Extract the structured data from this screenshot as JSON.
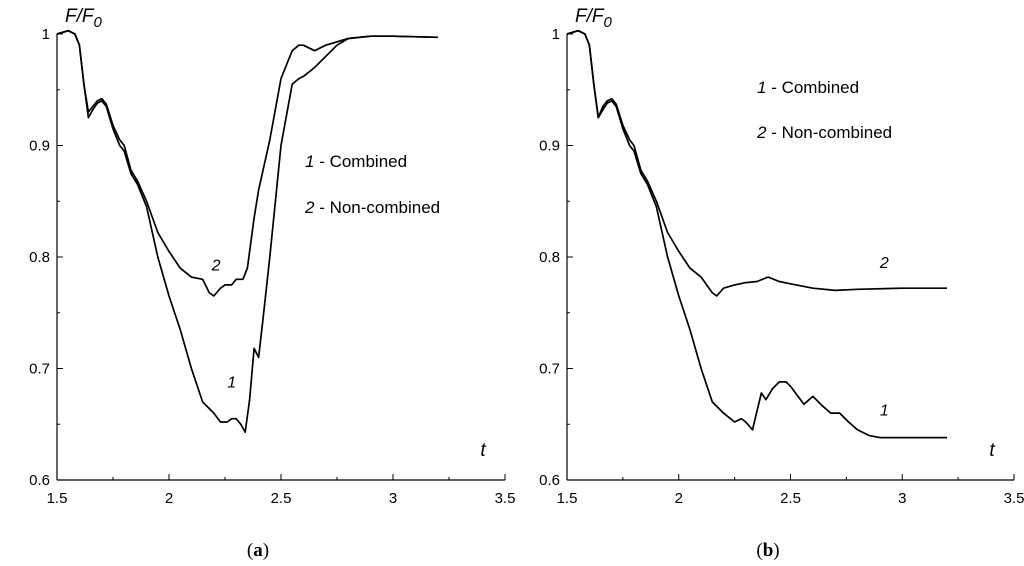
{
  "chart_data": [
    {
      "type": "line",
      "panel_label": "a",
      "ylabel": "F/F0",
      "ylabel_base": "F/F",
      "ylabel_sub": "0",
      "xlabel": "t",
      "xlim": [
        1.5,
        3.5
      ],
      "ylim": [
        0.6,
        1.0
      ],
      "x_ticks": [
        "1.5",
        "2",
        "2.5",
        "3",
        "3.5"
      ],
      "y_ticks": [
        "0.6",
        "0.7",
        "0.8",
        "0.9",
        "1"
      ],
      "grid": false,
      "legend": [
        {
          "num": "1",
          "text": "- Combined"
        },
        {
          "num": "2",
          "text": "- Non-combined"
        }
      ],
      "legend_placement": "right-middle",
      "series": [
        {
          "curve_label": "1",
          "x": [
            1.5,
            1.55,
            1.58,
            1.6,
            1.62,
            1.64,
            1.66,
            1.68,
            1.7,
            1.72,
            1.75,
            1.78,
            1.8,
            1.83,
            1.86,
            1.9,
            1.95,
            2.0,
            2.05,
            2.1,
            2.15,
            2.2,
            2.23,
            2.26,
            2.28,
            2.3,
            2.32,
            2.34,
            2.36,
            2.38,
            2.4,
            2.42,
            2.45,
            2.5,
            2.55,
            2.58,
            2.6,
            2.65,
            2.7,
            2.75,
            2.8,
            2.9,
            3.0,
            3.2
          ],
          "y": [
            1.0,
            1.003,
            1.0,
            0.99,
            0.955,
            0.925,
            0.932,
            0.938,
            0.94,
            0.935,
            0.915,
            0.9,
            0.895,
            0.875,
            0.865,
            0.845,
            0.8,
            0.765,
            0.735,
            0.7,
            0.67,
            0.66,
            0.652,
            0.652,
            0.655,
            0.655,
            0.65,
            0.643,
            0.672,
            0.718,
            0.71,
            0.745,
            0.8,
            0.9,
            0.955,
            0.96,
            0.962,
            0.97,
            0.98,
            0.99,
            0.996,
            0.998,
            0.998,
            0.997
          ]
        },
        {
          "curve_label": "2",
          "x": [
            1.5,
            1.55,
            1.58,
            1.6,
            1.62,
            1.64,
            1.66,
            1.68,
            1.7,
            1.72,
            1.75,
            1.78,
            1.8,
            1.83,
            1.86,
            1.9,
            1.95,
            2.0,
            2.05,
            2.1,
            2.15,
            2.18,
            2.2,
            2.23,
            2.25,
            2.28,
            2.3,
            2.33,
            2.35,
            2.38,
            2.4,
            2.45,
            2.5,
            2.55,
            2.58,
            2.6,
            2.65,
            2.7,
            2.8,
            2.9,
            3.0,
            3.2
          ],
          "y": [
            1.0,
            1.003,
            1.0,
            0.99,
            0.955,
            0.93,
            0.935,
            0.94,
            0.942,
            0.937,
            0.918,
            0.905,
            0.9,
            0.878,
            0.868,
            0.85,
            0.822,
            0.805,
            0.79,
            0.782,
            0.78,
            0.768,
            0.765,
            0.772,
            0.775,
            0.775,
            0.78,
            0.78,
            0.79,
            0.835,
            0.86,
            0.905,
            0.96,
            0.985,
            0.99,
            0.99,
            0.985,
            0.99,
            0.996,
            0.998,
            0.998,
            0.997
          ]
        }
      ],
      "curve_label_positions": [
        {
          "label": "1",
          "x": 2.28,
          "y": 0.683
        },
        {
          "label": "2",
          "x": 2.21,
          "y": 0.788
        }
      ]
    },
    {
      "type": "line",
      "panel_label": "b",
      "ylabel": "F/F0",
      "ylabel_base": "F/F",
      "ylabel_sub": "0",
      "xlabel": "t",
      "xlim": [
        1.5,
        3.5
      ],
      "ylim": [
        0.6,
        1.0
      ],
      "x_ticks": [
        "1.5",
        "2",
        "2.5",
        "3",
        "3.5"
      ],
      "y_ticks": [
        "0.6",
        "0.7",
        "0.8",
        "0.9",
        "1"
      ],
      "grid": false,
      "legend": [
        {
          "num": "1",
          "text": "- Combined"
        },
        {
          "num": "2",
          "text": "- Non-combined"
        }
      ],
      "legend_placement": "top-right",
      "series": [
        {
          "curve_label": "1",
          "x": [
            1.5,
            1.55,
            1.58,
            1.6,
            1.62,
            1.64,
            1.66,
            1.68,
            1.7,
            1.72,
            1.75,
            1.78,
            1.8,
            1.83,
            1.86,
            1.9,
            1.95,
            2.0,
            2.05,
            2.1,
            2.15,
            2.2,
            2.25,
            2.28,
            2.3,
            2.33,
            2.35,
            2.37,
            2.39,
            2.42,
            2.45,
            2.48,
            2.5,
            2.53,
            2.56,
            2.6,
            2.64,
            2.68,
            2.72,
            2.76,
            2.8,
            2.85,
            2.9,
            3.0,
            3.2
          ],
          "y": [
            1.0,
            1.003,
            1.0,
            0.99,
            0.955,
            0.925,
            0.932,
            0.938,
            0.94,
            0.935,
            0.915,
            0.9,
            0.895,
            0.875,
            0.865,
            0.845,
            0.8,
            0.765,
            0.735,
            0.7,
            0.67,
            0.66,
            0.652,
            0.655,
            0.652,
            0.645,
            0.662,
            0.678,
            0.672,
            0.682,
            0.688,
            0.688,
            0.684,
            0.676,
            0.668,
            0.675,
            0.667,
            0.66,
            0.66,
            0.652,
            0.645,
            0.64,
            0.638,
            0.638,
            0.638
          ]
        },
        {
          "curve_label": "2",
          "x": [
            1.5,
            1.55,
            1.58,
            1.6,
            1.62,
            1.64,
            1.66,
            1.68,
            1.7,
            1.72,
            1.75,
            1.78,
            1.8,
            1.83,
            1.86,
            1.9,
            1.95,
            2.0,
            2.05,
            2.1,
            2.15,
            2.17,
            2.2,
            2.25,
            2.3,
            2.35,
            2.4,
            2.45,
            2.5,
            2.6,
            2.7,
            2.8,
            3.0,
            3.2
          ],
          "y": [
            1.0,
            1.003,
            1.0,
            0.99,
            0.955,
            0.925,
            0.935,
            0.94,
            0.942,
            0.937,
            0.918,
            0.905,
            0.9,
            0.878,
            0.868,
            0.85,
            0.822,
            0.805,
            0.79,
            0.782,
            0.768,
            0.765,
            0.772,
            0.775,
            0.777,
            0.778,
            0.782,
            0.778,
            0.776,
            0.772,
            0.77,
            0.771,
            0.772,
            0.772
          ]
        }
      ],
      "curve_label_positions": [
        {
          "label": "1",
          "x": 2.92,
          "y": 0.658
        },
        {
          "label": "2",
          "x": 2.92,
          "y": 0.79
        }
      ]
    }
  ]
}
